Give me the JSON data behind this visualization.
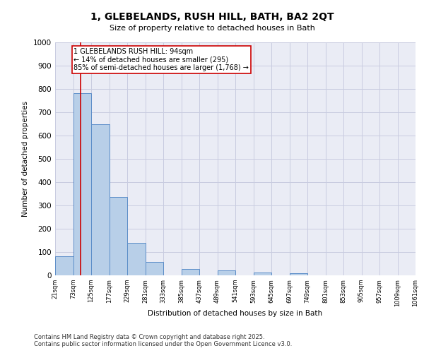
{
  "title_line1": "1, GLEBELANDS, RUSH HILL, BATH, BA2 2QT",
  "title_line2": "Size of property relative to detached houses in Bath",
  "xlabel": "Distribution of detached houses by size in Bath",
  "ylabel": "Number of detached properties",
  "footer_line1": "Contains HM Land Registry data © Crown copyright and database right 2025.",
  "footer_line2": "Contains public sector information licensed under the Open Government Licence v3.0.",
  "annotation_line1": "1 GLEBELANDS RUSH HILL: 94sqm",
  "annotation_line2": "← 14% of detached houses are smaller (295)",
  "annotation_line3": "85% of semi-detached houses are larger (1,768) →",
  "bar_edges": [
    21,
    73,
    125,
    177,
    229,
    281,
    333,
    385,
    437,
    489,
    541,
    593,
    645,
    697,
    749,
    801,
    853,
    905,
    957,
    1009,
    1061
  ],
  "bar_heights": [
    82,
    782,
    648,
    335,
    138,
    58,
    0,
    28,
    0,
    20,
    0,
    12,
    0,
    8,
    0,
    0,
    0,
    0,
    0,
    0
  ],
  "bar_color": "#b8cfe8",
  "bar_edge_color": "#5b8dc8",
  "grid_color": "#c8cce0",
  "background_color": "#eaecf5",
  "red_line_x": 94,
  "ylim": [
    0,
    1000
  ],
  "yticks": [
    0,
    100,
    200,
    300,
    400,
    500,
    600,
    700,
    800,
    900,
    1000
  ],
  "annotation_box_color": "#cc0000",
  "ann_text_fontsize": 7
}
